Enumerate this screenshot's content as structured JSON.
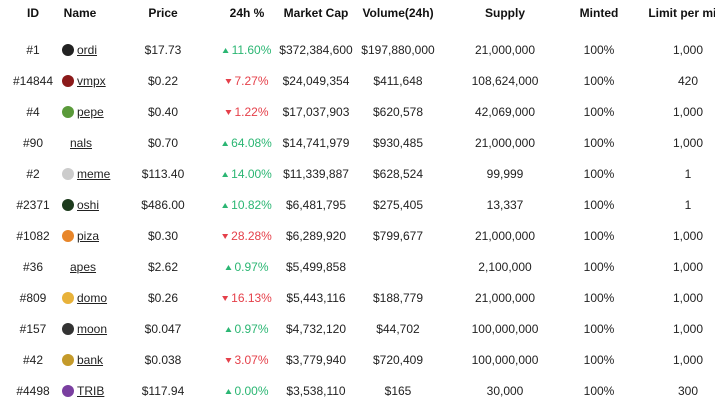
{
  "table": {
    "columns": [
      "ID",
      "Name",
      "Price",
      "24h %",
      "Market Cap",
      "Volume(24h)",
      "Supply",
      "Minted",
      "Limit per mint"
    ],
    "rows": [
      {
        "id": "#1",
        "name": "ordi",
        "price": "$17.73",
        "change": "11.60%",
        "trend": "up",
        "market_cap": "$372,384,600",
        "volume": "$197,880,000",
        "supply": "21,000,000",
        "minted": "100%",
        "limit": "1,000"
      },
      {
        "id": "#14844",
        "name": "vmpx",
        "price": "$0.22",
        "change": "7.27%",
        "trend": "down",
        "market_cap": "$24,049,354",
        "volume": "$411,648",
        "supply": "108,624,000",
        "minted": "100%",
        "limit": "420"
      },
      {
        "id": "#4",
        "name": "pepe",
        "price": "$0.40",
        "change": "1.22%",
        "trend": "down",
        "market_cap": "$17,037,903",
        "volume": "$620,578",
        "supply": "42,069,000",
        "minted": "100%",
        "limit": "1,000"
      },
      {
        "id": "#90",
        "name": "nals",
        "price": "$0.70",
        "change": "64.08%",
        "trend": "up",
        "market_cap": "$14,741,979",
        "volume": "$930,485",
        "supply": "21,000,000",
        "minted": "100%",
        "limit": "1,000"
      },
      {
        "id": "#2",
        "name": "meme",
        "price": "$113.40",
        "change": "14.00%",
        "trend": "up",
        "market_cap": "$11,339,887",
        "volume": "$628,524",
        "supply": "99,999",
        "minted": "100%",
        "limit": "1"
      },
      {
        "id": "#2371",
        "name": "oshi",
        "price": "$486.00",
        "change": "10.82%",
        "trend": "up",
        "market_cap": "$6,481,795",
        "volume": "$275,405",
        "supply": "13,337",
        "minted": "100%",
        "limit": "1"
      },
      {
        "id": "#1082",
        "name": "piza",
        "price": "$0.30",
        "change": "28.28%",
        "trend": "down",
        "market_cap": "$6,289,920",
        "volume": "$799,677",
        "supply": "21,000,000",
        "minted": "100%",
        "limit": "1,000"
      },
      {
        "id": "#36",
        "name": "apes",
        "price": "$2.62",
        "change": "0.97%",
        "trend": "up",
        "market_cap": "$5,499,858",
        "volume": null,
        "supply": "2,100,000",
        "minted": "100%",
        "limit": "1,000"
      },
      {
        "id": "#809",
        "name": "domo",
        "price": "$0.26",
        "change": "16.13%",
        "trend": "down",
        "market_cap": "$5,443,116",
        "volume": "$188,779",
        "supply": "21,000,000",
        "minted": "100%",
        "limit": "1,000"
      },
      {
        "id": "#157",
        "name": "moon",
        "price": "$0.047",
        "change": "0.97%",
        "trend": "up",
        "market_cap": "$4,732,120",
        "volume": "$44,702",
        "supply": "100,000,000",
        "minted": "100%",
        "limit": "1,000"
      },
      {
        "id": "#42",
        "name": "bank",
        "price": "$0.038",
        "change": "3.07%",
        "trend": "down",
        "market_cap": "$3,779,940",
        "volume": "$720,409",
        "supply": "100,000,000",
        "minted": "100%",
        "limit": "1,000"
      },
      {
        "id": "#4498",
        "name": "TRIB",
        "price": "$117.94",
        "change": "0.00%",
        "trend": "up",
        "market_cap": "$3,538,110",
        "volume": "$165",
        "supply": "30,000",
        "minted": "100%",
        "limit": "300"
      }
    ]
  }
}
